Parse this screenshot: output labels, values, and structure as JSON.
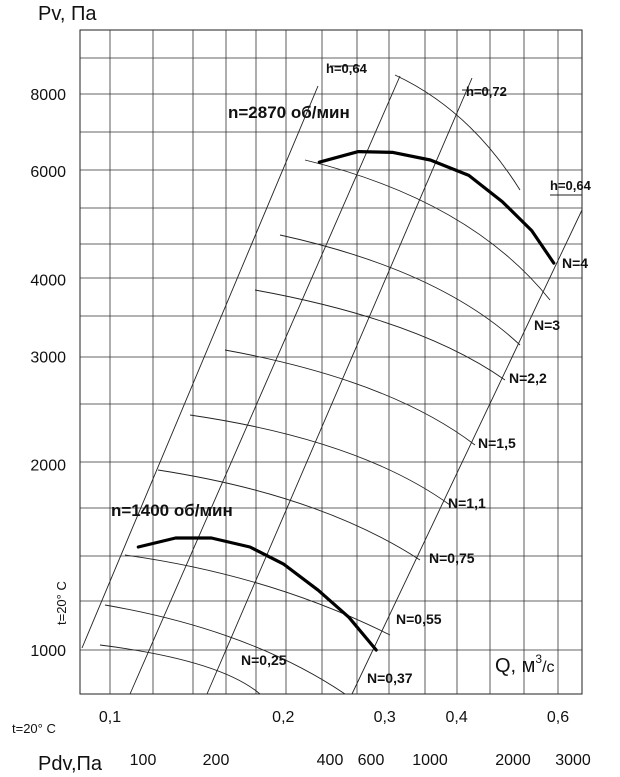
{
  "chart_data": {
    "type": "line",
    "y_axis": {
      "label": "Pv, Па",
      "scale": "log",
      "tick_labels": [
        "8000",
        "6000",
        "4000",
        "3000",
        "2000",
        "1000"
      ],
      "ticks": [
        8000,
        6000,
        4000,
        3000,
        2000,
        1000
      ]
    },
    "x_axis": {
      "label": "Q, м³/с",
      "label_main": "Q, м",
      "label_sup": "3",
      "label_tail": "/с",
      "scale": "log",
      "tick_labels": [
        "0,1",
        "0,2",
        "0,3",
        "0,4",
        "0,6"
      ],
      "ticks": [
        0.1,
        0.2,
        0.3,
        0.4,
        0.6
      ]
    },
    "pdv_axis": {
      "label": "Pdv,Па",
      "tick_labels": [
        "100",
        "200",
        "400",
        "600",
        "1000",
        "2000",
        "3000"
      ],
      "ticks": [
        100,
        200,
        400,
        600,
        1000,
        2000,
        3000
      ]
    },
    "temperature_label": "t=20° C",
    "series": [
      {
        "name": "n=2870 об/мин",
        "x": [
          0.231,
          0.27,
          0.31,
          0.36,
          0.42,
          0.48,
          0.54,
          0.59
        ],
        "y": [
          6200,
          6450,
          6430,
          6250,
          5900,
          5350,
          4800,
          4250
        ]
      },
      {
        "name": "n=1400 об/мин",
        "x": [
          0.112,
          0.13,
          0.15,
          0.175,
          0.2,
          0.23,
          0.26,
          0.29
        ],
        "y": [
          1470,
          1520,
          1520,
          1470,
          1380,
          1250,
          1130,
          1000
        ]
      }
    ],
    "power_labels": [
      "N=4",
      "N=3",
      "N=2,2",
      "N=1,5",
      "N=1,1",
      "N=0,75",
      "N=0,55",
      "N=0,37",
      "N=0,25"
    ],
    "efficiency_labels": [
      "h=0,64",
      "h=0,72",
      "h=0,64"
    ],
    "grid": true
  }
}
